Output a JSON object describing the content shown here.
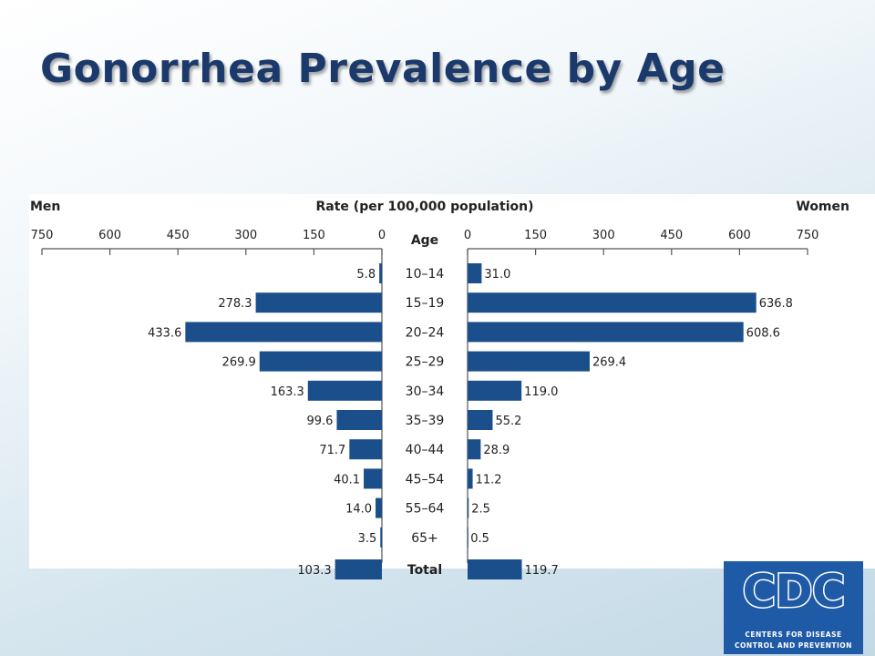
{
  "slide": {
    "title": "Gonorrhea Prevalence by Age"
  },
  "chart_data": {
    "type": "bar",
    "orientation": "horizontal",
    "layout": "population-pyramid",
    "title": "",
    "axis_title": "Rate (per 100,000 population)",
    "category_header": "Age",
    "left_label": "Men",
    "right_label": "Women",
    "xlim": [
      0,
      750
    ],
    "ticks": [
      0,
      150,
      300,
      450,
      600,
      750
    ],
    "tick_labels_left": [
      "750",
      "600",
      "450",
      "300",
      "150",
      "0"
    ],
    "tick_labels_right": [
      "0",
      "150",
      "300",
      "450",
      "600",
      "750"
    ],
    "categories": [
      "10–14",
      "15–19",
      "20–24",
      "25–29",
      "30–34",
      "35–39",
      "40–44",
      "45–54",
      "55–64",
      "65+",
      "Total"
    ],
    "bold_categories": [
      "Total"
    ],
    "series": [
      {
        "name": "Men",
        "side": "left",
        "values": [
          5.8,
          278.3,
          433.6,
          269.9,
          163.3,
          99.6,
          71.7,
          40.1,
          14.0,
          3.5,
          103.3
        ],
        "labels": [
          "5.8",
          "278.3",
          "433.6",
          "269.9",
          "163.3",
          "99.6",
          "71.7",
          "40.1",
          "14.0",
          "3.5",
          "103.3"
        ]
      },
      {
        "name": "Women",
        "side": "right",
        "values": [
          31.0,
          636.8,
          608.6,
          269.4,
          119.0,
          55.2,
          28.9,
          11.2,
          2.5,
          0.5,
          119.7
        ],
        "labels": [
          "31.0",
          "636.8",
          "608.6",
          "269.4",
          "119.0",
          "55.2",
          "28.9",
          "11.2",
          "2.5",
          "0.5",
          "119.7"
        ]
      }
    ],
    "bar_color": "#1a4f8b",
    "grid": false,
    "legend": "none"
  },
  "logo": {
    "letters": "CDC",
    "line1": "CENTERS FOR DISEASE",
    "line2": "CONTROL AND PREVENTION",
    "color": "#1f5aa6"
  }
}
